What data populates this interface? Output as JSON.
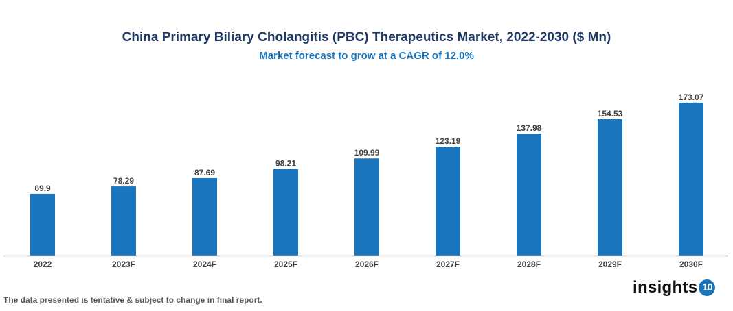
{
  "chart_data": {
    "type": "bar",
    "title": "China Primary Biliary Cholangitis (PBC) Therapeutics Market, 2022-2030 ($ Mn)",
    "subtitle": "Market forecast to grow at a CAGR of 12.0%",
    "categories": [
      "2022",
      "2023F",
      "2024F",
      "2025F",
      "2026F",
      "2027F",
      "2028F",
      "2029F",
      "2030F"
    ],
    "values": [
      69.9,
      78.29,
      87.69,
      98.21,
      109.99,
      123.19,
      137.98,
      154.53,
      173.07
    ],
    "value_labels": [
      "69.9",
      "78.29",
      "87.69",
      "98.21",
      "109.99",
      "123.19",
      "137.98",
      "154.53",
      "173.07"
    ],
    "xlabel": "",
    "ylabel": "",
    "grid": false,
    "legend": "none",
    "bar_color": "#1a75bc"
  },
  "footnote": "The data presented is tentative & subject to change in final report.",
  "logo": {
    "text": "insights",
    "badge": "10"
  }
}
